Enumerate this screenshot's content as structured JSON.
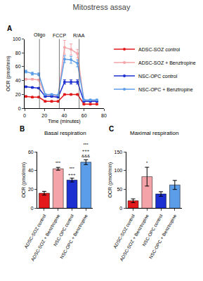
{
  "title": "Mitostress assay",
  "chart_data": [
    {
      "panel": "A",
      "type": "line",
      "xlabel": "Time (minutes)",
      "ylabel": "OCR (pmol/min)",
      "x": [
        1.3,
        7.8,
        14.3,
        20.8,
        27.3,
        33.8,
        40.3,
        46.8,
        53.3,
        59.8,
        66.3,
        72.8
      ],
      "xlim": [
        0,
        80
      ],
      "xticks": [
        0,
        20,
        40,
        60,
        80
      ],
      "ylim": [
        0,
        100
      ],
      "yticks": [
        0,
        20,
        40,
        60,
        80,
        100
      ],
      "injections": [
        {
          "label": "Oligo",
          "x": 15
        },
        {
          "label": "FCCP",
          "x": 35
        },
        {
          "label": "R/AA",
          "x": 55
        }
      ],
      "legend": "right",
      "marker": "circle",
      "series": [
        {
          "name": "ADSC-SOZ control",
          "color": "#e3191b",
          "values": [
            17,
            16,
            16,
            10,
            10,
            10,
            20,
            20,
            20,
            6,
            6,
            6
          ],
          "errors": [
            1,
            1,
            1,
            1,
            1,
            1,
            1,
            1,
            1,
            1,
            1,
            1
          ]
        },
        {
          "name": "ADSC-SOZ + Benztropine",
          "color": "#f4a3a8",
          "values": [
            42,
            42,
            41,
            19,
            19,
            18,
            88,
            85,
            79,
            10,
            10,
            10
          ],
          "errors": [
            1,
            1,
            1,
            1,
            1,
            1,
            10,
            8,
            6,
            1,
            1,
            1
          ]
        },
        {
          "name": "NSC-OPC control",
          "color": "#1c2fd1",
          "values": [
            31,
            30,
            29,
            17,
            17,
            16,
            38,
            38,
            38,
            10,
            10,
            10
          ],
          "errors": [
            1,
            1,
            1,
            1,
            1,
            1,
            3,
            3,
            3,
            1,
            1,
            1
          ]
        },
        {
          "name": "NSC-OPC + Benztropine",
          "color": "#5b9de8",
          "values": [
            53,
            50,
            49,
            20,
            20,
            19,
            71,
            70,
            65,
            12,
            12,
            12
          ],
          "errors": [
            2,
            2,
            2,
            1,
            1,
            1,
            5,
            5,
            5,
            1,
            1,
            1
          ]
        }
      ]
    },
    {
      "panel": "B",
      "type": "bar",
      "title": "Basal respiration",
      "ylabel": "OCR (pmol/min)",
      "categories": [
        "ADSC-SOZ control",
        "ADSC-SOZ + Benztropine",
        "NSC-OPC control",
        "NSC-OPC + Benztropine"
      ],
      "values": [
        16,
        42,
        30,
        49
      ],
      "errors": [
        2,
        1.5,
        2,
        2.5
      ],
      "colors": [
        "#e3191b",
        "#f4a3a8",
        "#1c2fd1",
        "#5b9de8"
      ],
      "significance": [
        null,
        [
          "***"
        ],
        [
          "***",
          "+++"
        ],
        [
          "***",
          "+++",
          "&&&"
        ]
      ],
      "ylim": [
        0,
        60
      ],
      "yticks": [
        0,
        20,
        40,
        60
      ]
    },
    {
      "panel": "C",
      "type": "bar",
      "title": "Maximal respiration",
      "ylabel": "OCR (pmol/min)",
      "categories": [
        "ADSC-SOZ control",
        "ADSC-SOZ + Benztropine",
        "NSC-OPC control",
        "NSC-OPC + Benztropine"
      ],
      "values": [
        20,
        84,
        38,
        62
      ],
      "errors": [
        5,
        25,
        6,
        12
      ],
      "colors": [
        "#e3191b",
        "#f4a3a8",
        "#1c2fd1",
        "#5b9de8"
      ],
      "significance": [
        null,
        [
          "*"
        ],
        null,
        null
      ],
      "ylim": [
        0,
        150
      ],
      "yticks": [
        0,
        50,
        100,
        150
      ]
    }
  ]
}
